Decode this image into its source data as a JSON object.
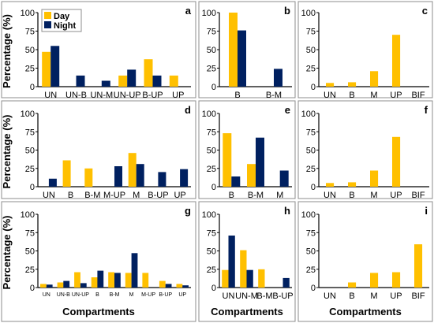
{
  "colors": {
    "day": "#FFC000",
    "night": "#002060"
  },
  "chart_data": [
    {
      "panel": "a",
      "type": "bar",
      "categories": [
        "UN",
        "UN-B",
        "UN-M",
        "UN-UP",
        "B-UP",
        "UP"
      ],
      "series": [
        {
          "name": "Day",
          "values": [
            47,
            0,
            0,
            15,
            37,
            15
          ]
        },
        {
          "name": "Night",
          "values": [
            55,
            15,
            8,
            23,
            15,
            0
          ]
        }
      ],
      "ylabel": "Percentage (%)",
      "ylim": [
        0,
        100
      ],
      "yticks": [
        0,
        25,
        50,
        75,
        100
      ],
      "legend": "top-left"
    },
    {
      "panel": "b",
      "type": "bar",
      "categories": [
        "B",
        "B-M"
      ],
      "series": [
        {
          "name": "Day",
          "values": [
            100,
            0
          ]
        },
        {
          "name": "Night",
          "values": [
            76,
            24
          ]
        }
      ],
      "ylim": [
        0,
        100
      ],
      "yticks": [
        0,
        25,
        50,
        75,
        100
      ]
    },
    {
      "panel": "c",
      "type": "bar",
      "categories": [
        "UN",
        "B",
        "M",
        "UP",
        "BIF"
      ],
      "series": [
        {
          "name": "Day",
          "values": [
            5,
            6,
            21,
            70,
            0
          ]
        }
      ],
      "ylim": [
        0,
        100
      ],
      "yticks": [
        0,
        25,
        50,
        75,
        100
      ]
    },
    {
      "panel": "d",
      "type": "bar",
      "categories": [
        "UN",
        "B",
        "B-M",
        "M-UP",
        "M",
        "B-UP",
        "UP"
      ],
      "series": [
        {
          "name": "Day",
          "values": [
            0,
            36,
            25,
            0,
            46,
            0,
            0
          ]
        },
        {
          "name": "Night",
          "values": [
            11,
            0,
            0,
            28,
            31,
            20,
            24
          ]
        }
      ],
      "ylabel": "Percentage (%)",
      "ylim": [
        0,
        100
      ],
      "yticks": [
        0,
        25,
        50,
        75,
        100
      ]
    },
    {
      "panel": "e",
      "type": "bar",
      "categories": [
        "B",
        "B-M",
        "M"
      ],
      "series": [
        {
          "name": "Day",
          "values": [
            73,
            31,
            0
          ]
        },
        {
          "name": "Night",
          "values": [
            14,
            67,
            22
          ]
        }
      ],
      "ylim": [
        0,
        100
      ],
      "yticks": [
        0,
        25,
        50,
        75,
        100
      ]
    },
    {
      "panel": "f",
      "type": "bar",
      "categories": [
        "UN",
        "B",
        "M",
        "UP",
        "BIF"
      ],
      "series": [
        {
          "name": "Day",
          "values": [
            5,
            6,
            22,
            68,
            0
          ]
        }
      ],
      "ylim": [
        0,
        100
      ],
      "yticks": [
        0,
        25,
        50,
        75,
        100
      ]
    },
    {
      "panel": "g",
      "type": "bar",
      "categories": [
        "UN",
        "UN-B",
        "UN-UP",
        "B",
        "B-M",
        "M",
        "M-UP",
        "B-UP",
        "UP"
      ],
      "series": [
        {
          "name": "Day",
          "values": [
            5,
            7,
            21,
            14,
            21,
            20,
            20,
            9,
            5
          ]
        },
        {
          "name": "Night",
          "values": [
            4,
            9,
            6,
            23,
            20,
            47,
            0,
            5,
            3
          ]
        }
      ],
      "ylabel": "Percentage (%)",
      "xlabel": "Compartments",
      "ylim": [
        0,
        100
      ],
      "yticks": [
        0,
        25,
        50,
        75,
        100
      ]
    },
    {
      "panel": "h",
      "type": "bar",
      "categories": [
        "UN",
        "UN-M",
        "B-M",
        "B-UP"
      ],
      "series": [
        {
          "name": "Day",
          "values": [
            24,
            51,
            25,
            0
          ]
        },
        {
          "name": "Night",
          "values": [
            71,
            24,
            0,
            13
          ]
        }
      ],
      "xlabel": "Compartments",
      "ylim": [
        0,
        100
      ],
      "yticks": [
        0,
        25,
        50,
        75,
        100
      ]
    },
    {
      "panel": "i",
      "type": "bar",
      "categories": [
        "UN",
        "B",
        "M",
        "UP",
        "BIF"
      ],
      "series": [
        {
          "name": "Day",
          "values": [
            0,
            7,
            20,
            21,
            59
          ]
        }
      ],
      "xlabel": "Compartments",
      "ylim": [
        0,
        100
      ],
      "yticks": [
        0,
        25,
        50,
        75,
        100
      ]
    }
  ]
}
